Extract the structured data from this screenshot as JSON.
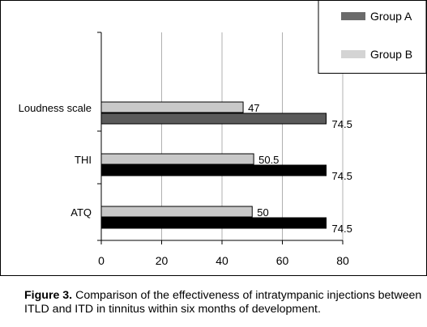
{
  "chart_data": {
    "type": "bar",
    "orientation": "horizontal",
    "categories": [
      "Loudness scale",
      "THI",
      "ATQ"
    ],
    "series": [
      {
        "name": "Group A",
        "values": [
          74.5,
          74.5,
          74.5
        ],
        "colors": [
          "#5a5a5a",
          "#000000",
          "#000000"
        ]
      },
      {
        "name": "Group B",
        "values": [
          47,
          50.5,
          50
        ],
        "colors": [
          "#c8c8c8",
          "#c8c8c8",
          "#c8c8c8"
        ]
      }
    ],
    "data_labels_A": [
      "74.5",
      "74.5",
      "74.5"
    ],
    "data_labels_B": [
      "47",
      "50.5",
      "50"
    ],
    "x_ticks": [
      0,
      20,
      40,
      60,
      80
    ],
    "x_tick_labels": [
      "0",
      "20",
      "40",
      "60",
      "80"
    ],
    "xlim": [
      0,
      80
    ],
    "grid": true,
    "legend_position": "top-right",
    "legend": [
      {
        "name": "Group A",
        "color": "#6b6b6b"
      },
      {
        "name": "Group B",
        "color": "#d4d4d4"
      }
    ]
  },
  "caption": {
    "label": "Figure 3.",
    "text": " Comparison of the effectiveness of intratympanic injections between ITLD and ITD in tinnitus within six months of development."
  }
}
